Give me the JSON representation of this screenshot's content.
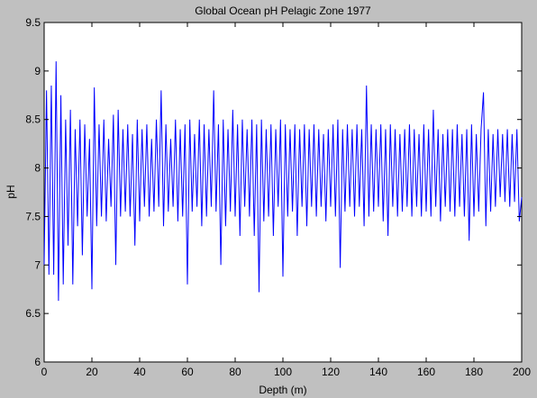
{
  "chart_data": {
    "type": "line",
    "title": "Global Ocean pH Pelagic Zone 1977",
    "xlabel": "Depth (m)",
    "ylabel": "pH",
    "x": [
      0,
      1,
      2,
      3,
      4,
      5,
      6,
      7,
      8,
      9,
      10,
      11,
      12,
      13,
      14,
      15,
      16,
      17,
      18,
      19,
      20,
      21,
      22,
      23,
      24,
      25,
      26,
      27,
      28,
      29,
      30,
      31,
      32,
      33,
      34,
      35,
      36,
      37,
      38,
      39,
      40,
      41,
      42,
      43,
      44,
      45,
      46,
      47,
      48,
      49,
      50,
      51,
      52,
      53,
      54,
      55,
      56,
      57,
      58,
      59,
      60,
      61,
      62,
      63,
      64,
      65,
      66,
      67,
      68,
      69,
      70,
      71,
      72,
      73,
      74,
      75,
      76,
      77,
      78,
      79,
      80,
      81,
      82,
      83,
      84,
      85,
      86,
      87,
      88,
      89,
      90,
      91,
      92,
      93,
      94,
      95,
      96,
      97,
      98,
      99,
      100,
      101,
      102,
      103,
      104,
      105,
      106,
      107,
      108,
      109,
      110,
      111,
      112,
      113,
      114,
      115,
      116,
      117,
      118,
      119,
      120,
      121,
      122,
      123,
      124,
      125,
      126,
      127,
      128,
      129,
      130,
      131,
      132,
      133,
      134,
      135,
      136,
      137,
      138,
      139,
      140,
      141,
      142,
      143,
      144,
      145,
      146,
      147,
      148,
      149,
      150,
      151,
      152,
      153,
      154,
      155,
      156,
      157,
      158,
      159,
      160,
      161,
      162,
      163,
      164,
      165,
      166,
      167,
      168,
      169,
      170,
      171,
      172,
      173,
      174,
      175,
      176,
      177,
      178,
      179,
      180,
      181,
      182,
      183,
      184,
      185,
      186,
      187,
      188,
      189,
      190,
      191,
      192,
      193,
      194,
      195,
      196,
      197,
      198,
      199,
      200
    ],
    "series": [
      {
        "color": "#0000ff",
        "values": [
          7.0,
          8.8,
          6.9,
          8.85,
          6.9,
          9.1,
          6.63,
          8.75,
          6.8,
          8.5,
          7.2,
          8.6,
          6.8,
          8.4,
          7.4,
          8.5,
          7.1,
          8.45,
          7.5,
          8.3,
          6.75,
          8.83,
          7.4,
          8.45,
          7.5,
          8.5,
          7.45,
          8.3,
          7.6,
          8.55,
          7.0,
          8.6,
          7.5,
          8.4,
          7.55,
          8.45,
          7.5,
          8.35,
          7.2,
          8.5,
          7.45,
          8.4,
          7.6,
          8.45,
          7.5,
          8.3,
          7.55,
          8.5,
          7.6,
          8.8,
          7.4,
          8.45,
          7.55,
          8.3,
          7.6,
          8.5,
          7.45,
          8.4,
          7.5,
          8.45,
          6.8,
          8.5,
          7.55,
          8.35,
          7.6,
          8.5,
          7.4,
          8.45,
          7.5,
          8.4,
          7.6,
          8.8,
          7.55,
          8.45,
          7.0,
          8.5,
          7.4,
          8.4,
          7.55,
          8.6,
          7.5,
          8.45,
          7.3,
          8.5,
          7.6,
          8.4,
          7.5,
          8.5,
          7.3,
          8.45,
          6.72,
          8.5,
          7.45,
          8.4,
          7.5,
          8.45,
          7.3,
          8.4,
          7.6,
          8.5,
          6.88,
          8.45,
          7.5,
          8.4,
          7.55,
          8.45,
          7.3,
          8.4,
          7.6,
          8.45,
          7.4,
          8.4,
          7.6,
          8.45,
          7.5,
          8.4,
          7.6,
          8.35,
          7.45,
          8.4,
          7.6,
          8.45,
          7.5,
          8.5,
          6.97,
          8.4,
          7.55,
          8.45,
          7.6,
          8.4,
          7.5,
          8.45,
          7.6,
          8.4,
          7.4,
          8.85,
          7.5,
          8.45,
          7.55,
          8.4,
          7.6,
          8.45,
          7.45,
          8.4,
          7.3,
          8.45,
          7.6,
          8.4,
          7.5,
          8.35,
          7.55,
          8.4,
          7.6,
          8.45,
          7.5,
          8.4,
          7.6,
          8.35,
          7.5,
          8.45,
          7.55,
          8.4,
          7.5,
          8.6,
          7.6,
          8.4,
          7.45,
          8.35,
          7.6,
          8.4,
          7.55,
          8.4,
          7.5,
          8.45,
          7.6,
          8.35,
          7.5,
          8.4,
          7.25,
          8.45,
          7.5,
          8.35,
          7.55,
          8.4,
          8.78,
          7.4,
          8.4,
          7.55,
          8.35,
          7.6,
          8.4,
          7.7,
          8.35,
          7.65,
          8.4,
          7.6,
          8.35,
          7.65,
          8.4,
          7.45,
          7.7
        ]
      }
    ],
    "xlim": [
      0,
      200
    ],
    "xticks": [
      0,
      20,
      40,
      60,
      80,
      100,
      120,
      140,
      160,
      180,
      200
    ],
    "ylim": [
      6,
      9.5
    ],
    "yticks": [
      6,
      6.5,
      7,
      7.5,
      8,
      8.5,
      9,
      9.5
    ]
  }
}
